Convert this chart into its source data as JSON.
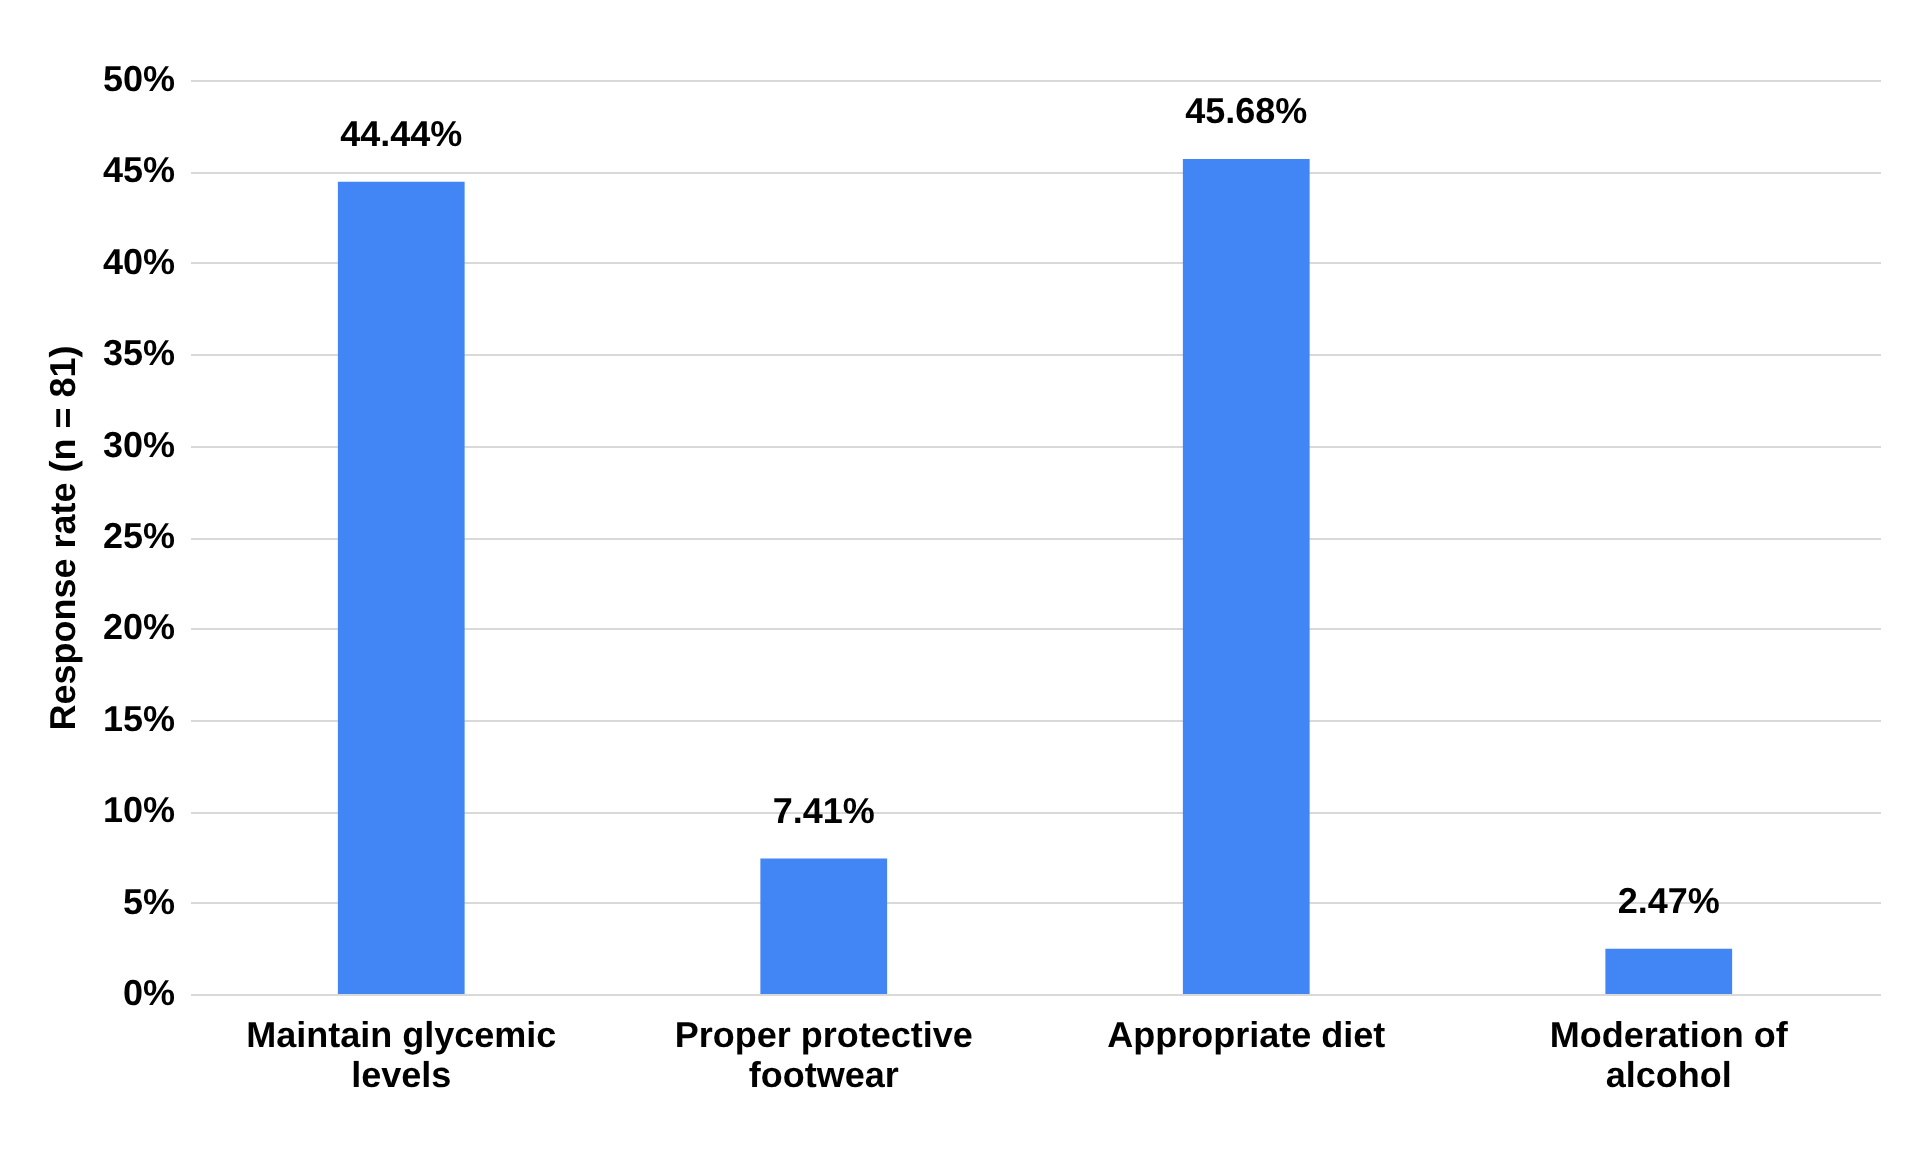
{
  "chart_data": {
    "type": "bar",
    "ylabel": "Response rate (n = 81)",
    "categories": [
      "Maintain glycemic levels",
      "Proper protective footwear",
      "Appropriate diet",
      "Moderation of alcohol"
    ],
    "values": [
      44.44,
      7.41,
      45.68,
      2.47
    ],
    "value_labels": [
      "44.44%",
      "7.41%",
      "45.68%",
      "2.47%"
    ],
    "color": "#4285f4",
    "ylim": [
      0,
      50
    ],
    "yticks": [
      {
        "value": 0,
        "label": "0%"
      },
      {
        "value": 5,
        "label": "5%"
      },
      {
        "value": 10,
        "label": "10%"
      },
      {
        "value": 15,
        "label": "15%"
      },
      {
        "value": 20,
        "label": "20%"
      },
      {
        "value": 25,
        "label": "25%"
      },
      {
        "value": 30,
        "label": "30%"
      },
      {
        "value": 35,
        "label": "35%"
      },
      {
        "value": 40,
        "label": "40%"
      },
      {
        "value": 45,
        "label": "45%"
      },
      {
        "value": 50,
        "label": "50%"
      }
    ],
    "grid": "y"
  }
}
